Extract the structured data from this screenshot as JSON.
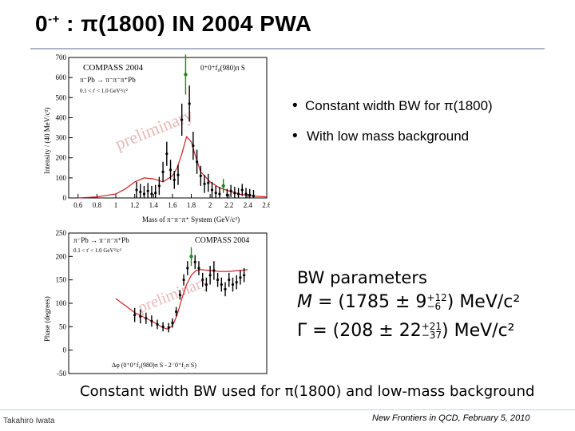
{
  "slide": {
    "title_main": "0",
    "title_sup": "-+",
    "title_rest": " : π(1800) IN 2004 PWA"
  },
  "bullets": [
    "Constant width BW  for π(1800)",
    "With low mass background"
  ],
  "top_plot": {
    "header": "COMPASS 2004",
    "wave": "0⁺0⁺f₀(980)π S",
    "reaction": "π⁻Pb → π⁻π⁻π⁺Pb",
    "t_range": "0.1 < t' < 1.0 GeV²/c²",
    "watermark": "preliminary",
    "ylabel": "Intensity / (40 MeV/c²)",
    "xlabel": "Mass of π⁻π⁻π⁺ System (GeV/c²)",
    "x_ticks": [
      "0.6",
      "0.8",
      "1",
      "1.2",
      "1.4",
      "1.6",
      "1.8",
      "2",
      "2.2",
      "2.4",
      "2.6"
    ],
    "y_ticks": [
      "0",
      "100",
      "200",
      "300",
      "400",
      "500",
      "600",
      "700"
    ]
  },
  "bottom_plot": {
    "reaction": "π⁻Pb → π⁻π⁻π⁺Pb",
    "t_range": "0.1 < t' < 1.0 GeV²/c²",
    "header": "COMPASS 2004",
    "watermark": "preliminary",
    "ylabel": "Phase (degrees)",
    "phase_label": "Δφ (0⁺0⁺f₀(980)π S - 2⁻0⁺f₂π S)",
    "y_ticks": [
      "-50",
      "0",
      "50",
      "100",
      "150",
      "200",
      "250"
    ]
  },
  "bw_params": {
    "title": "BW parameters",
    "m_symbol": "M",
    "m_value": "1785",
    "m_stat": "9",
    "m_sys_up": "+12",
    "m_sys_down": "−6",
    "gamma_symbol": "Γ",
    "gamma_value": "208",
    "gamma_stat": "22",
    "gamma_sys_up": "+21",
    "gamma_sys_down": "−37",
    "unit": "MeV/c²"
  },
  "caption": "Constant width BW used for π(1800) and low-mass background",
  "footer": {
    "author": "Takahiro Iwata",
    "conference": "New Frontiers in QCD,  February 5, 2010"
  },
  "colors": {
    "data_points": "#000000",
    "highlight_points": "#1a8a1a",
    "fit_curve": "#cc2020",
    "watermark": "#e8b8b8"
  },
  "chart_data": [
    {
      "type": "scatter",
      "title": "COMPASS 2004",
      "xlabel": "Mass of π⁻π⁻π⁺ System (GeV/c²)",
      "ylabel": "Intensity / (40 MeV/c²)",
      "xlim": [
        0.5,
        2.6
      ],
      "ylim": [
        0,
        700
      ],
      "grid": false,
      "series": [
        {
          "name": "0⁺0⁺f₀(980)π S",
          "x": [
            1.22,
            1.26,
            1.3,
            1.34,
            1.38,
            1.42,
            1.46,
            1.5,
            1.54,
            1.58,
            1.62,
            1.66,
            1.7,
            1.74,
            1.78,
            1.82,
            1.86,
            1.9,
            1.94,
            1.98,
            2.02,
            2.06,
            2.1,
            2.14,
            2.18,
            2.22,
            2.26,
            2.3,
            2.34,
            2.38,
            2.42,
            2.46
          ],
          "y": [
            40,
            30,
            20,
            35,
            20,
            25,
            60,
            130,
            220,
            140,
            90,
            115,
            390,
            615,
            470,
            260,
            180,
            110,
            70,
            75,
            40,
            25,
            20,
            60,
            15,
            35,
            25,
            20,
            40,
            20,
            15,
            10
          ],
          "yerr": [
            40,
            40,
            40,
            40,
            40,
            40,
            45,
            50,
            60,
            50,
            45,
            50,
            80,
            100,
            90,
            70,
            60,
            50,
            45,
            45,
            40,
            35,
            35,
            35,
            30,
            30,
            30,
            30,
            30,
            30,
            30,
            30
          ]
        },
        {
          "name": "fit",
          "x": [
            0.6,
            0.8,
            1.0,
            1.1,
            1.2,
            1.3,
            1.4,
            1.5,
            1.6,
            1.65,
            1.7,
            1.75,
            1.8,
            1.85,
            1.9,
            2.0,
            2.1,
            2.2,
            2.3,
            2.4,
            2.5,
            2.6
          ],
          "y": [
            0,
            5,
            20,
            45,
            80,
            100,
            95,
            80,
            110,
            150,
            220,
            305,
            280,
            200,
            130,
            80,
            50,
            35,
            20,
            12,
            8,
            5
          ]
        }
      ]
    },
    {
      "type": "scatter",
      "title": "COMPASS 2004",
      "ylabel": "Phase (degrees)",
      "xlim": [
        0.5,
        2.6
      ],
      "ylim": [
        -50,
        250
      ],
      "grid": false,
      "series": [
        {
          "name": "Δφ (0⁺0⁺f₀(980)π S - 2⁻0⁺f₂π S)",
          "x": [
            1.2,
            1.26,
            1.32,
            1.38,
            1.44,
            1.5,
            1.56,
            1.6,
            1.64,
            1.68,
            1.72,
            1.76,
            1.8,
            1.84,
            1.88,
            1.92,
            1.96,
            2.0,
            2.04,
            2.08,
            2.12,
            2.16,
            2.2,
            2.24,
            2.28,
            2.32,
            2.36
          ],
          "y": [
            75,
            72,
            68,
            62,
            55,
            50,
            48,
            58,
            82,
            118,
            150,
            175,
            200,
            188,
            175,
            150,
            140,
            160,
            170,
            150,
            140,
            130,
            150,
            140,
            145,
            155,
            160
          ],
          "yerr": [
            15,
            15,
            12,
            12,
            10,
            10,
            10,
            10,
            10,
            10,
            12,
            15,
            20,
            15,
            15,
            15,
            15,
            20,
            20,
            15,
            15,
            15,
            15,
            15,
            15,
            15,
            15
          ]
        },
        {
          "name": "fit",
          "x": [
            1.0,
            1.1,
            1.2,
            1.3,
            1.4,
            1.5,
            1.55,
            1.6,
            1.65,
            1.7,
            1.75,
            1.8,
            1.85,
            1.9,
            2.0,
            2.1,
            2.2,
            2.3,
            2.4
          ],
          "y": [
            110,
            95,
            80,
            70,
            60,
            48,
            45,
            52,
            75,
            110,
            140,
            160,
            170,
            172,
            170,
            168,
            168,
            170,
            172
          ]
        }
      ]
    }
  ]
}
